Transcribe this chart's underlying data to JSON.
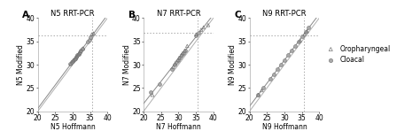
{
  "panels": [
    {
      "label": "A",
      "title": "N5 RRT-PCR",
      "xlabel": "N5 Hoffmann",
      "ylabel": "N5 Modified",
      "xlim": [
        20,
        40
      ],
      "ylim": [
        20,
        40
      ],
      "xticks": [
        20,
        25,
        30,
        35,
        40
      ],
      "yticks": [
        20,
        25,
        30,
        35,
        40
      ],
      "vline": 35.5,
      "hline": 36.2,
      "oropharyngeal": [
        [
          29.5,
          30.2
        ],
        [
          30.1,
          30.8
        ],
        [
          30.3,
          31.0
        ],
        [
          30.8,
          31.3
        ],
        [
          31.0,
          31.5
        ],
        [
          31.2,
          31.8
        ],
        [
          31.5,
          32.1
        ],
        [
          31.8,
          32.3
        ],
        [
          32.0,
          32.6
        ],
        [
          32.3,
          32.9
        ],
        [
          33.0,
          33.5
        ],
        [
          35.5,
          36.5
        ],
        [
          36.0,
          36.7
        ]
      ],
      "cloacal": [
        [
          29.2,
          30.1
        ],
        [
          29.8,
          30.5
        ],
        [
          30.0,
          30.7
        ],
        [
          30.4,
          31.1
        ],
        [
          30.8,
          31.3
        ],
        [
          31.1,
          31.7
        ],
        [
          31.4,
          32.0
        ],
        [
          31.7,
          32.3
        ],
        [
          32.1,
          32.7
        ],
        [
          32.4,
          33.0
        ],
        [
          32.9,
          33.5
        ],
        [
          34.3,
          35.0
        ],
        [
          34.8,
          35.4
        ],
        [
          35.2,
          35.8
        ]
      ]
    },
    {
      "label": "B",
      "title": "N7 RRT-PCR",
      "xlabel": "N7 Hoffmann",
      "ylabel": "N7 Modified",
      "xlim": [
        20,
        40
      ],
      "ylim": [
        20,
        40
      ],
      "xticks": [
        20,
        25,
        30,
        35,
        40
      ],
      "yticks": [
        20,
        25,
        30,
        35,
        40
      ],
      "vline": 35.5,
      "hline": 36.8,
      "oropharyngeal": [
        [
          22.5,
          23.5
        ],
        [
          28.5,
          29.5
        ],
        [
          29.0,
          30.2
        ],
        [
          29.8,
          31.0
        ],
        [
          30.2,
          31.5
        ],
        [
          30.8,
          32.0
        ],
        [
          31.2,
          32.5
        ],
        [
          31.8,
          33.0
        ],
        [
          32.5,
          34.0
        ],
        [
          35.2,
          36.5
        ],
        [
          36.5,
          37.5
        ],
        [
          37.2,
          38.0
        ],
        [
          38.5,
          38.5
        ]
      ],
      "cloacal": [
        [
          22.0,
          24.2
        ],
        [
          24.5,
          25.8
        ],
        [
          28.2,
          29.0
        ],
        [
          28.8,
          30.0
        ],
        [
          29.3,
          30.5
        ],
        [
          29.8,
          31.0
        ],
        [
          30.3,
          31.5
        ],
        [
          30.8,
          32.0
        ],
        [
          31.3,
          32.5
        ],
        [
          31.8,
          33.0
        ],
        [
          35.0,
          36.2
        ],
        [
          35.8,
          36.8
        ]
      ]
    },
    {
      "label": "C",
      "title": "N9 RRT-PCR",
      "xlabel": "N9 Hoffmann",
      "ylabel": "N9 Modified",
      "xlim": [
        20,
        40
      ],
      "ylim": [
        20,
        40
      ],
      "xticks": [
        20,
        25,
        30,
        35,
        40
      ],
      "yticks": [
        20,
        25,
        30,
        35,
        40
      ],
      "vline": 35.5,
      "hline": 36.2,
      "oropharyngeal": [
        [
          22.5,
          23.5
        ],
        [
          23.5,
          24.5
        ],
        [
          34.5,
          35.2
        ],
        [
          35.8,
          36.5
        ],
        [
          36.5,
          37.2
        ]
      ],
      "cloacal": [
        [
          22.5,
          23.5
        ],
        [
          24.0,
          25.0
        ],
        [
          26.0,
          27.0
        ],
        [
          27.0,
          28.0
        ],
        [
          28.0,
          29.0
        ],
        [
          29.0,
          30.0
        ],
        [
          30.0,
          31.0
        ],
        [
          31.0,
          32.0
        ],
        [
          32.0,
          33.0
        ],
        [
          33.0,
          34.0
        ],
        [
          34.0,
          35.0
        ],
        [
          35.0,
          36.0
        ],
        [
          36.0,
          37.0
        ],
        [
          37.0,
          38.0
        ]
      ]
    }
  ],
  "identity_line_color": "#b0b0b0",
  "regression_line_color": "#888888",
  "dotted_line_color": "#aaaaaa",
  "marker_triangle_fc": "none",
  "marker_triangle_ec": "#777777",
  "marker_circle_fc": "#aaaaaa",
  "marker_circle_ec": "#666666",
  "marker_size_tri": 7,
  "marker_size_cir": 8,
  "font_size": 5.5,
  "title_font_size": 6.0,
  "label_font_size": 7.5,
  "spine_color": "#999999"
}
